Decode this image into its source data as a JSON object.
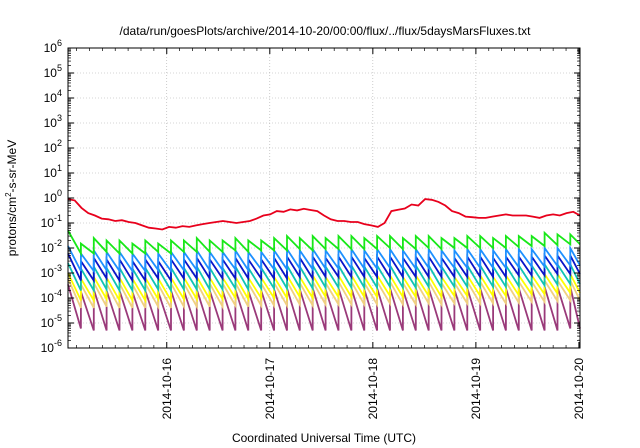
{
  "chart_data": {
    "type": "line",
    "title": "/data/run/goesPlots/archive/2014-10-20/00:00/flux/../flux/5daysMarsFluxes.txt",
    "xlabel": "Coordinated Universal Time (UTC)",
    "ylabel": {
      "prefix": "protons/cm",
      "sup": "2",
      "suffix": "-s-sr-MeV"
    },
    "yscale": "log",
    "ylim": [
      1e-06,
      1000000.0
    ],
    "ytick_exponents": [
      -6,
      -5,
      -4,
      -3,
      -2,
      -1,
      0,
      1,
      2,
      3,
      4,
      5,
      6
    ],
    "ytick_base": "10",
    "xlim": [
      "2014-10-15T01:00",
      "2014-10-20T00:15"
    ],
    "xticks": [
      {
        "label": "2014-10-16",
        "t": "2014-10-16T00:00"
      },
      {
        "label": "2014-10-17",
        "t": "2014-10-17T00:00"
      },
      {
        "label": "2014-10-18",
        "t": "2014-10-18T00:00"
      },
      {
        "label": "2014-10-19",
        "t": "2014-10-19T00:00"
      },
      {
        "label": "2014-10-20",
        "t": "2014-10-20T00:00"
      }
    ],
    "grid": true,
    "sawtooth": {
      "start": "2014-10-15T01:00",
      "period_hours": 3.0,
      "cycles": 40
    },
    "series": [
      {
        "color": "#e8001c",
        "width": 1.8,
        "values": [
          0.9,
          0.8,
          0.4,
          0.25,
          0.2,
          0.15,
          0.14,
          0.12,
          0.13,
          0.11,
          0.1,
          0.08,
          0.065,
          0.06,
          0.055,
          0.07,
          0.065,
          0.075,
          0.07,
          0.08,
          0.09,
          0.1,
          0.11,
          0.12,
          0.11,
          0.1,
          0.11,
          0.12,
          0.15,
          0.2,
          0.22,
          0.3,
          0.28,
          0.35,
          0.32,
          0.37,
          0.33,
          0.3,
          0.2,
          0.14,
          0.12,
          0.12,
          0.11,
          0.11,
          0.09,
          0.08,
          0.07,
          0.1,
          0.3,
          0.34,
          0.38,
          0.55,
          0.5,
          0.9,
          0.85,
          0.7,
          0.5,
          0.3,
          0.25,
          0.18,
          0.17,
          0.16,
          0.16,
          0.18,
          0.2,
          0.22,
          0.2,
          0.2,
          0.2,
          0.18,
          0.16,
          0.2,
          0.22,
          0.2,
          0.25,
          0.28,
          0.2
        ]
      },
      {
        "color": "#18e818",
        "width": 1.8,
        "peaks": [
          0.05,
          0.015,
          0.025,
          0.02,
          0.02,
          0.015,
          0.02,
          0.015,
          0.02,
          0.02,
          0.025,
          0.02,
          0.02,
          0.025,
          0.02,
          0.02,
          0.025,
          0.03,
          0.025,
          0.03,
          0.025,
          0.03,
          0.03,
          0.025,
          0.03,
          0.03,
          0.025,
          0.03,
          0.03,
          0.025,
          0.025,
          0.03,
          0.03,
          0.025,
          0.03,
          0.03,
          0.03,
          0.04,
          0.035,
          0.035
        ],
        "troughs": [
          0.006,
          0.006,
          0.007,
          0.006,
          0.006,
          0.006,
          0.007,
          0.006,
          0.007,
          0.007,
          0.007,
          0.007,
          0.008,
          0.007,
          0.008,
          0.008,
          0.008,
          0.009,
          0.008,
          0.009,
          0.009,
          0.009,
          0.009,
          0.009,
          0.01,
          0.009,
          0.009,
          0.01,
          0.009,
          0.01,
          0.01,
          0.01,
          0.01,
          0.01,
          0.011,
          0.012,
          0.012,
          0.013,
          0.014,
          0.014
        ]
      },
      {
        "color": "#1e90ff",
        "width": 1.8,
        "peaks": [
          0.012,
          0.006,
          0.008,
          0.007,
          0.007,
          0.006,
          0.007,
          0.006,
          0.007,
          0.007,
          0.008,
          0.007,
          0.007,
          0.008,
          0.007,
          0.007,
          0.008,
          0.009,
          0.008,
          0.009,
          0.008,
          0.009,
          0.009,
          0.008,
          0.009,
          0.009,
          0.008,
          0.009,
          0.009,
          0.008,
          0.008,
          0.009,
          0.009,
          0.008,
          0.009,
          0.009,
          0.009,
          0.01,
          0.01,
          0.01
        ],
        "troughs": [
          0.0012,
          0.0012,
          0.0013,
          0.0012,
          0.0012,
          0.0012,
          0.0013,
          0.0012,
          0.0013,
          0.0013,
          0.0013,
          0.0013,
          0.0014,
          0.0013,
          0.0014,
          0.0014,
          0.0014,
          0.0015,
          0.0014,
          0.0015,
          0.0015,
          0.0015,
          0.0015,
          0.0015,
          0.0016,
          0.0015,
          0.0015,
          0.0016,
          0.0015,
          0.0016,
          0.0016,
          0.0016,
          0.0016,
          0.0016,
          0.0017,
          0.0018,
          0.0018,
          0.0019,
          0.002,
          0.002
        ]
      },
      {
        "color": "#0a14c8",
        "width": 1.8,
        "peaks": [
          0.006,
          0.003,
          0.004,
          0.0035,
          0.0035,
          0.003,
          0.0035,
          0.003,
          0.0035,
          0.0035,
          0.004,
          0.0035,
          0.0035,
          0.004,
          0.0035,
          0.0035,
          0.004,
          0.0045,
          0.004,
          0.0045,
          0.004,
          0.0045,
          0.0045,
          0.004,
          0.0045,
          0.0045,
          0.004,
          0.0045,
          0.0045,
          0.004,
          0.004,
          0.0045,
          0.0045,
          0.004,
          0.0045,
          0.0045,
          0.0045,
          0.005,
          0.005,
          0.005
        ],
        "troughs": [
          0.0005,
          0.0005,
          0.0006,
          0.0005,
          0.0005,
          0.0005,
          0.0006,
          0.0005,
          0.0006,
          0.0006,
          0.0006,
          0.0006,
          0.0006,
          0.0006,
          0.0006,
          0.0006,
          0.0006,
          0.0007,
          0.0006,
          0.0007,
          0.0007,
          0.0007,
          0.0007,
          0.0007,
          0.0007,
          0.0007,
          0.0007,
          0.0007,
          0.0007,
          0.0007,
          0.0007,
          0.0007,
          0.0007,
          0.0007,
          0.0008,
          0.0008,
          0.0008,
          0.0009,
          0.0009,
          0.0009
        ]
      },
      {
        "color": "#10c4b4",
        "width": 1.8,
        "peaks": [
          0.0025,
          0.0015,
          0.0018,
          0.0016,
          0.0016,
          0.0015,
          0.0016,
          0.0015,
          0.0016,
          0.0016,
          0.0018,
          0.0016,
          0.0016,
          0.0018,
          0.0016,
          0.0016,
          0.0018,
          0.002,
          0.0018,
          0.002,
          0.0018,
          0.002,
          0.002,
          0.0018,
          0.002,
          0.002,
          0.0018,
          0.002,
          0.002,
          0.0018,
          0.0018,
          0.002,
          0.002,
          0.0018,
          0.002,
          0.002,
          0.002,
          0.0022,
          0.0022,
          0.0022
        ],
        "troughs": [
          0.0002,
          0.0002,
          0.00022,
          0.0002,
          0.0002,
          0.0002,
          0.00022,
          0.0002,
          0.00022,
          0.00022,
          0.00022,
          0.00022,
          0.00024,
          0.00022,
          0.00024,
          0.00024,
          0.00024,
          0.00026,
          0.00024,
          0.00026,
          0.00026,
          0.00026,
          0.00026,
          0.00026,
          0.00028,
          0.00026,
          0.00026,
          0.00028,
          0.00026,
          0.00028,
          0.00028,
          0.00028,
          0.00028,
          0.00028,
          0.0003,
          0.00032,
          0.00032,
          0.00034,
          0.00036,
          0.00036
        ]
      },
      {
        "color": "#ffff00",
        "width": 1.8,
        "peaks": [
          0.001,
          0.0006,
          0.0007,
          0.00065,
          0.00065,
          0.0006,
          0.00065,
          0.0006,
          0.00065,
          0.00065,
          0.0007,
          0.00065,
          0.00065,
          0.0007,
          0.00065,
          0.00065,
          0.0007,
          0.0008,
          0.0007,
          0.0008,
          0.0007,
          0.0008,
          0.0008,
          0.0007,
          0.0008,
          0.0008,
          0.0007,
          0.0008,
          0.0008,
          0.0007,
          0.0007,
          0.0008,
          0.0008,
          0.0007,
          0.0008,
          0.0008,
          0.0008,
          0.0009,
          0.0009,
          0.0009
        ],
        "troughs": [
          8e-05,
          8e-05,
          9e-05,
          8e-05,
          8e-05,
          8e-05,
          9e-05,
          8e-05,
          9e-05,
          9e-05,
          9e-05,
          9e-05,
          0.0001,
          9e-05,
          0.0001,
          0.0001,
          0.0001,
          0.00011,
          0.0001,
          0.00011,
          0.00011,
          0.00011,
          0.00011,
          0.00011,
          0.00012,
          0.00011,
          0.00011,
          0.00012,
          0.00011,
          0.00012,
          0.00012,
          0.00012,
          0.00012,
          0.00012,
          0.00013,
          0.00014,
          0.00014,
          0.00015,
          0.00016,
          0.00016
        ]
      },
      {
        "color": "#f0d080",
        "width": 1.8,
        "peaks": [
          0.0006,
          0.00035,
          0.0004,
          0.00038,
          0.00038,
          0.00035,
          0.00038,
          0.00035,
          0.00038,
          0.00038,
          0.0004,
          0.00038,
          0.00038,
          0.0004,
          0.00038,
          0.00038,
          0.0004,
          0.00045,
          0.0004,
          0.00045,
          0.0004,
          0.00045,
          0.00045,
          0.0004,
          0.00045,
          0.00045,
          0.0004,
          0.00045,
          0.00045,
          0.0004,
          0.0004,
          0.00045,
          0.00045,
          0.0004,
          0.00045,
          0.00045,
          0.00045,
          0.0005,
          0.0005,
          0.0005
        ],
        "troughs": [
          4e-05,
          4e-05,
          4.5e-05,
          4e-05,
          4e-05,
          4e-05,
          4.5e-05,
          4e-05,
          4.5e-05,
          4.5e-05,
          4.5e-05,
          4.5e-05,
          5e-05,
          4.5e-05,
          5e-05,
          5e-05,
          5e-05,
          5.5e-05,
          5e-05,
          5.5e-05,
          5.5e-05,
          5.5e-05,
          5.5e-05,
          5.5e-05,
          6e-05,
          5.5e-05,
          5.5e-05,
          6e-05,
          5.5e-05,
          6e-05,
          6e-05,
          6e-05,
          6e-05,
          6e-05,
          6.5e-05,
          7e-05,
          7e-05,
          7.5e-05,
          8e-05,
          8e-05
        ]
      },
      {
        "color": "#9a3a7a",
        "width": 1.8,
        "peaks": [
          0.00035,
          0.00018,
          0.00022,
          0.0002,
          0.0002,
          0.00018,
          0.0002,
          0.00018,
          0.0002,
          0.0002,
          0.00022,
          0.0002,
          0.0002,
          0.00022,
          0.0002,
          0.0002,
          0.00022,
          0.00025,
          0.00022,
          0.00025,
          0.00022,
          0.00025,
          0.00025,
          0.00022,
          0.00025,
          0.00025,
          0.00022,
          0.00025,
          0.00025,
          0.00022,
          0.00022,
          0.00025,
          0.00025,
          0.00022,
          0.00025,
          0.00025,
          0.00025,
          0.00028,
          0.00028,
          0.00028
        ],
        "troughs": [
          6e-06,
          5e-06,
          5e-06,
          5e-06,
          5e-06,
          5e-06,
          5e-06,
          5e-06,
          5e-06,
          5e-06,
          5e-06,
          5e-06,
          5e-06,
          5e-06,
          5e-06,
          5e-06,
          5e-06,
          5e-06,
          5e-06,
          5e-06,
          5e-06,
          5e-06,
          5e-06,
          5e-06,
          5e-06,
          5e-06,
          5e-06,
          5e-06,
          5e-06,
          5e-06,
          5e-06,
          5e-06,
          5e-06,
          5e-06,
          5e-06,
          5e-06,
          5e-06,
          5e-06,
          6e-06,
          6e-06
        ]
      }
    ]
  }
}
